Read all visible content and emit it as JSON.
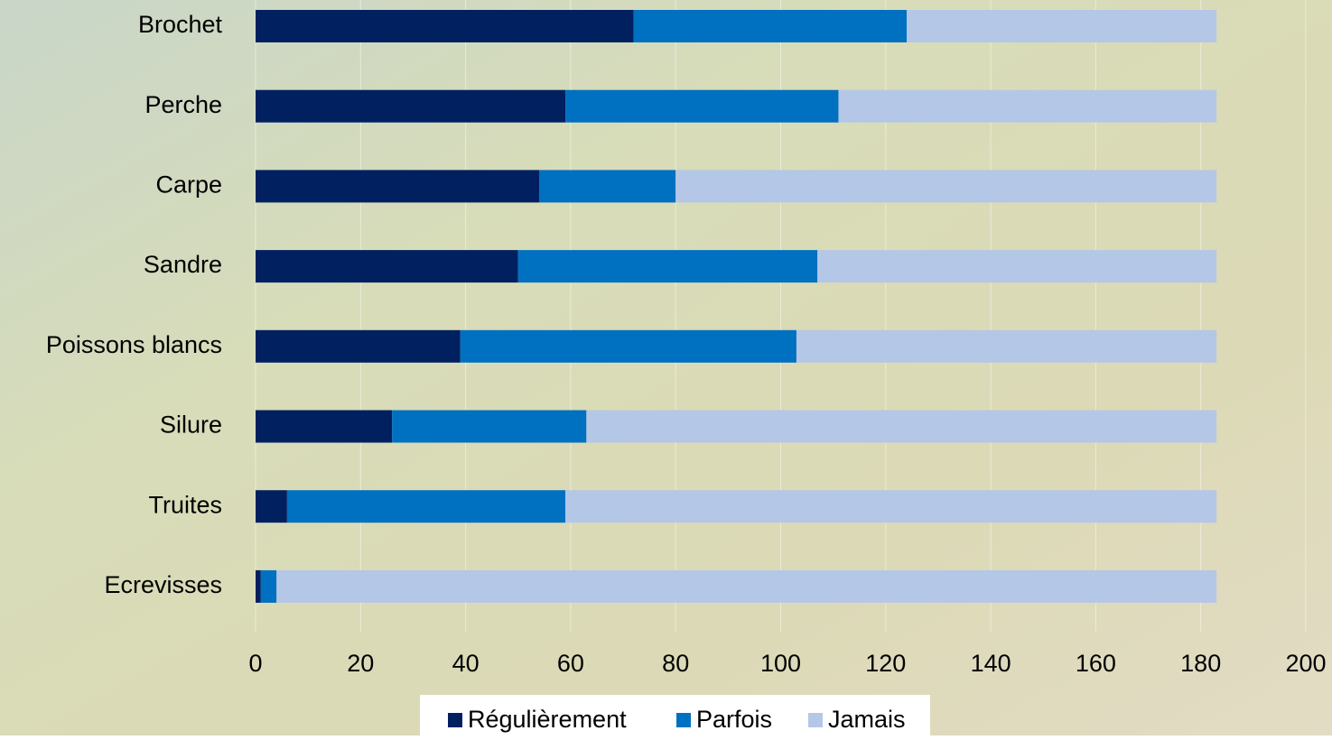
{
  "chart_data": {
    "type": "stacked-bar-horizontal",
    "categories": [
      "Brochet",
      "Perche",
      "Carpe",
      "Sandre",
      "Poissons blancs",
      "Silure",
      "Truites",
      "Ecrevisses"
    ],
    "series": [
      {
        "name": "Régulièrement",
        "color": "#002060",
        "values": [
          72,
          59,
          54,
          50,
          39,
          26,
          6,
          1
        ]
      },
      {
        "name": "Parfois",
        "color": "#0070c0",
        "values": [
          52,
          52,
          26,
          57,
          64,
          37,
          53,
          3
        ]
      },
      {
        "name": "Jamais",
        "color": "#b4c7e7",
        "values": [
          59,
          72,
          103,
          76,
          80,
          120,
          124,
          179
        ]
      }
    ],
    "xlim": [
      0,
      200
    ],
    "xticks": [
      0,
      20,
      40,
      60,
      80,
      100,
      120,
      140,
      160,
      180,
      200
    ],
    "grid": true
  }
}
